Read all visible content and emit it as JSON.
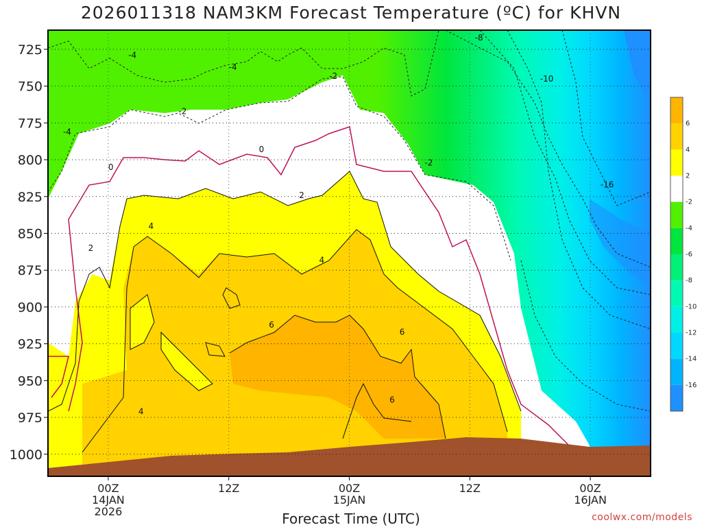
{
  "chart_data": {
    "type": "heatmap",
    "title": "2026011318 NAM3KM Forecast Temperature (ºC) for KHVN",
    "xlabel": "Forecast Time (UTC)",
    "ylabel": "",
    "credit": "coolwx.com/models",
    "y_axis": {
      "quantity": "pressure (hPa)",
      "range": [
        1015,
        712
      ],
      "ticks": [
        725,
        750,
        775,
        800,
        825,
        850,
        875,
        900,
        925,
        950,
        975,
        1000
      ]
    },
    "x_axis": {
      "range_hours": [
        -6,
        54
      ],
      "ticks": [
        {
          "hour": 0,
          "label": "00Z",
          "sub": "14JAN",
          "sub2": "2026"
        },
        {
          "hour": 12,
          "label": "12Z",
          "sub": "",
          "sub2": ""
        },
        {
          "hour": 24,
          "label": "00Z",
          "sub": "15JAN",
          "sub2": ""
        },
        {
          "hour": 36,
          "label": "12Z",
          "sub": "",
          "sub2": ""
        },
        {
          "hour": 48,
          "label": "00Z",
          "sub": "16JAN",
          "sub2": ""
        }
      ]
    },
    "colorbar": {
      "levels": [
        -18,
        -16,
        -14,
        -12,
        -10,
        -8,
        -6,
        -4,
        -2,
        2,
        4,
        6,
        8
      ],
      "labels": [
        "-16",
        "-14",
        "-12",
        "-10",
        "-8",
        "-6",
        "-4",
        "-2",
        "2",
        "4",
        "6"
      ],
      "colors": [
        "#1e90ff",
        "#00b4ff",
        "#00d8ff",
        "#00f0e8",
        "#00fab4",
        "#00f078",
        "#00e63c",
        "#50f000",
        "#ffffff",
        "#ffff00",
        "#ffd200",
        "#ffb400"
      ]
    },
    "contour_labels": [
      {
        "hour": -4.5,
        "p": 782,
        "text": "-4"
      },
      {
        "hour": 2,
        "p": 730,
        "text": "-4"
      },
      {
        "hour": 7,
        "p": 768,
        "text": "-2"
      },
      {
        "hour": 12,
        "p": 738,
        "text": "-4"
      },
      {
        "hour": 22,
        "p": 744,
        "text": "-2"
      },
      {
        "hour": 31.5,
        "p": 803,
        "text": "-2"
      },
      {
        "hour": 36.5,
        "p": 718,
        "text": "-8"
      },
      {
        "hour": 43,
        "p": 746,
        "text": "-10"
      },
      {
        "hour": 49,
        "p": 818,
        "text": "-16"
      },
      {
        "hour": 15,
        "p": 794,
        "text": "0"
      },
      {
        "hour": 0,
        "p": 806,
        "text": "0"
      },
      {
        "hour": 19,
        "p": 825,
        "text": "2"
      },
      {
        "hour": -2,
        "p": 861,
        "text": "2"
      },
      {
        "hour": 4,
        "p": 846,
        "text": "4"
      },
      {
        "hour": 21,
        "p": 869,
        "text": "4"
      },
      {
        "hour": 3,
        "p": 972,
        "text": "4"
      },
      {
        "hour": 16,
        "p": 913,
        "text": "6"
      },
      {
        "hour": 29,
        "p": 918,
        "text": "6"
      },
      {
        "hour": 28,
        "p": 964,
        "text": "6"
      }
    ],
    "grid": true,
    "legend": "right colorbar"
  }
}
